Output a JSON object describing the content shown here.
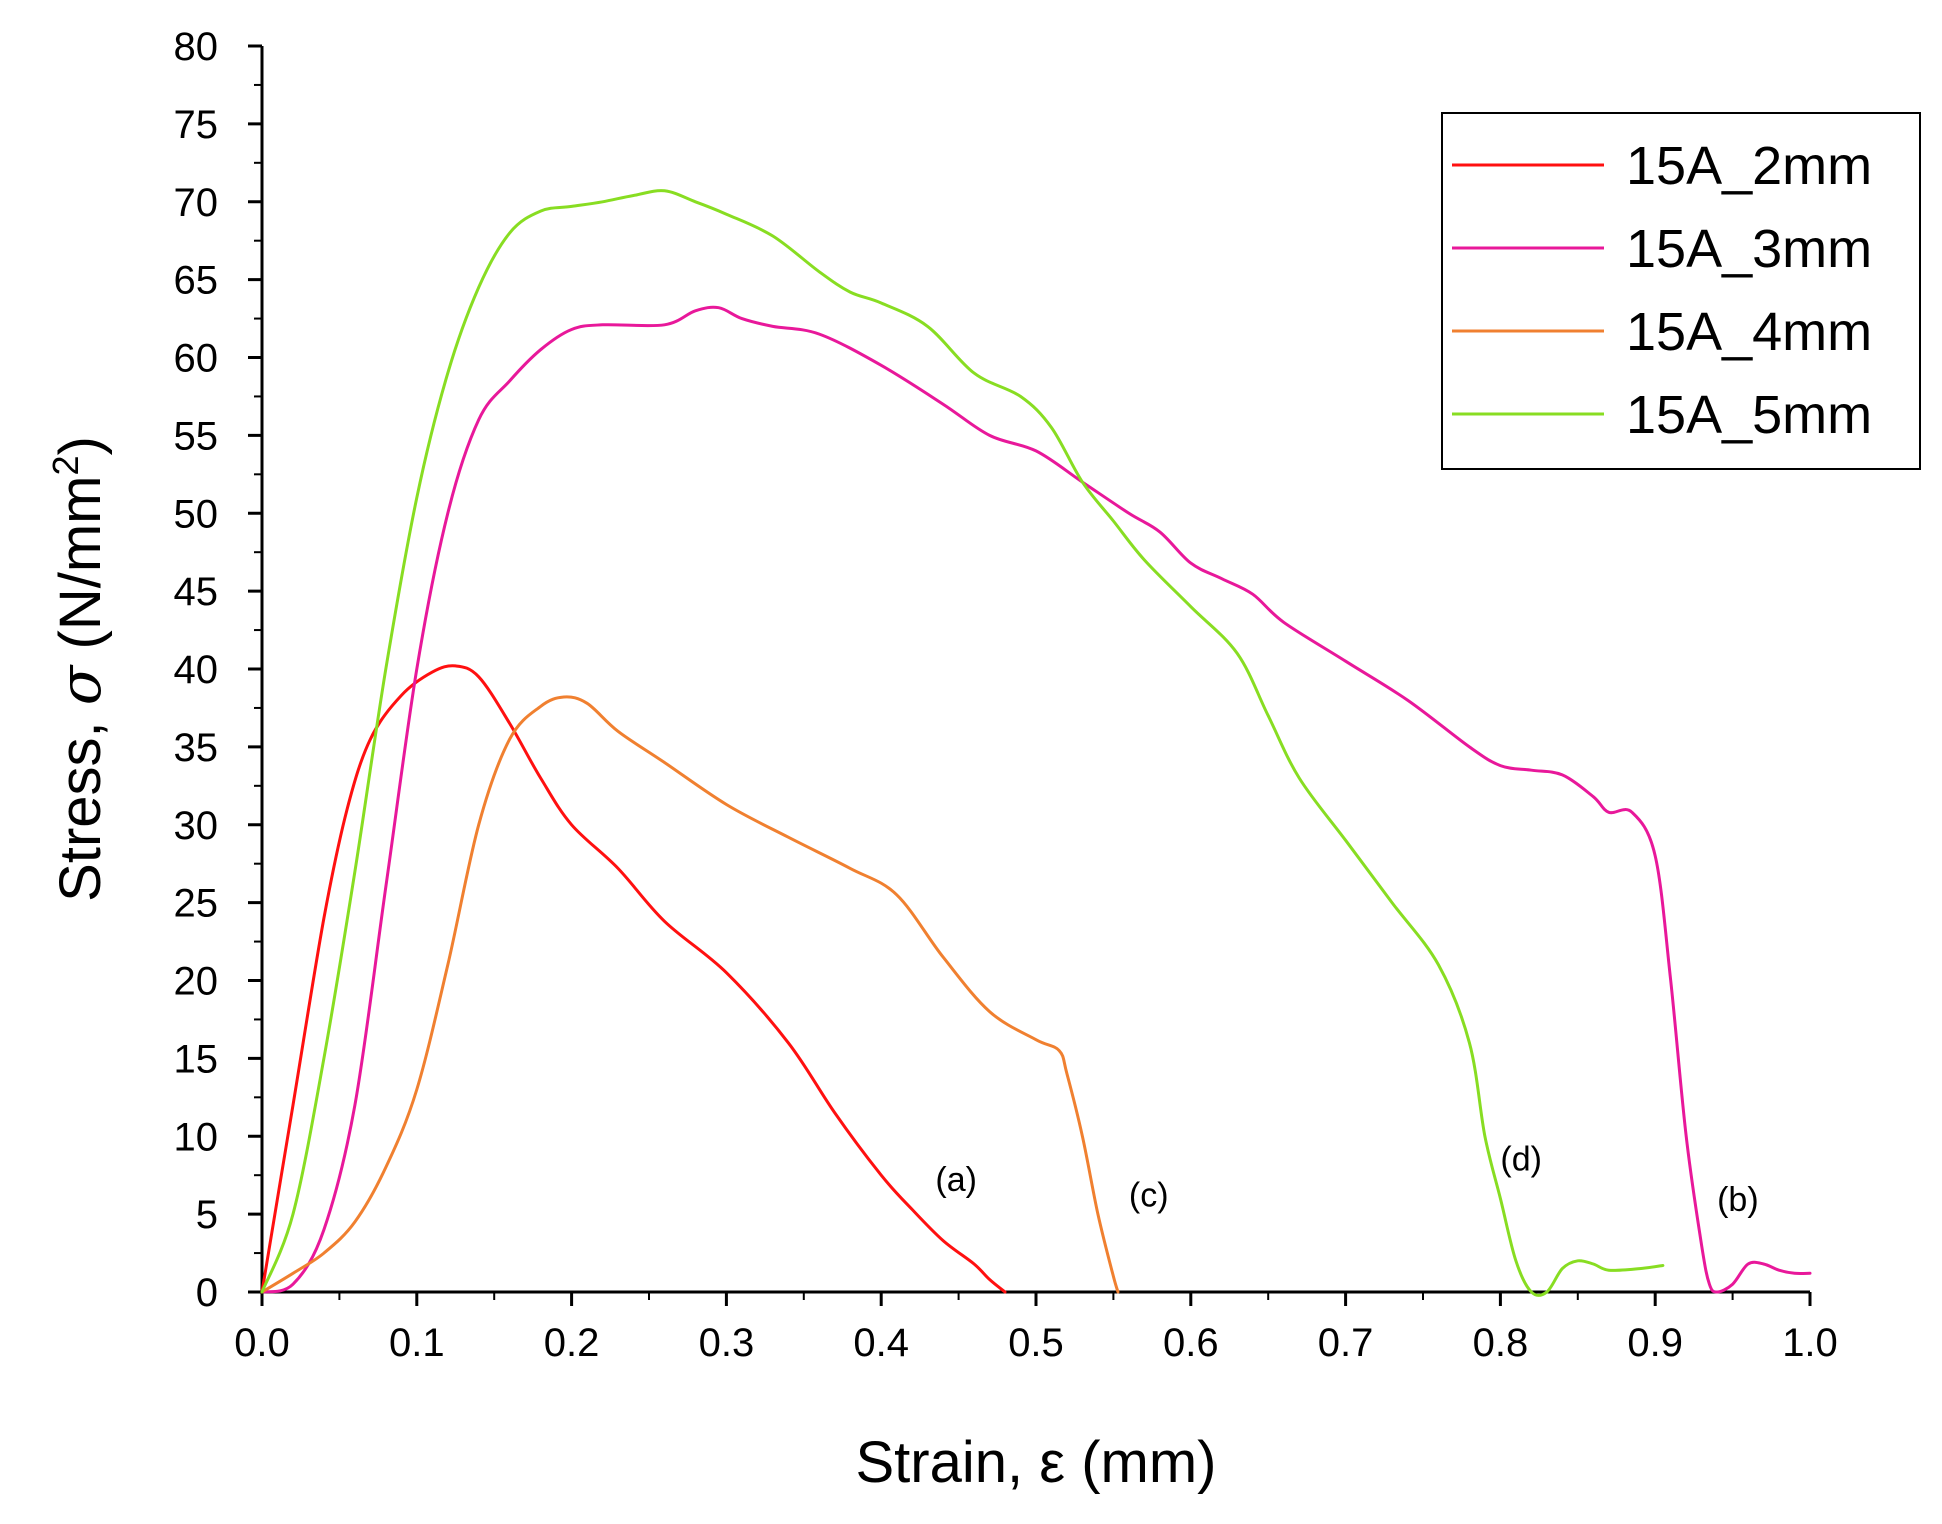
{
  "chart_data": {
    "type": "line",
    "title": "",
    "xlabel": "Strain, ε (mm)",
    "ylabel_prefix": "Stress, ",
    "ylabel_symbol": "σ",
    "ylabel_unit": " (N/mm",
    "ylabel_sup": "2",
    "ylabel_close": ")",
    "xlim": [
      0.0,
      1.0
    ],
    "ylim": [
      0,
      80
    ],
    "xticks": [
      "0.0",
      "0.1",
      "0.2",
      "0.3",
      "0.4",
      "0.5",
      "0.6",
      "0.7",
      "0.8",
      "0.9",
      "1.0"
    ],
    "yticks": [
      "0",
      "5",
      "10",
      "15",
      "20",
      "25",
      "30",
      "35",
      "40",
      "45",
      "50",
      "55",
      "60",
      "65",
      "70",
      "75",
      "80"
    ],
    "legend_position": "top-right",
    "series": [
      {
        "name": "15A_2mm",
        "color": "#ff1010",
        "points": [
          [
            0,
            0
          ],
          [
            0.02,
            12
          ],
          [
            0.04,
            24
          ],
          [
            0.055,
            31
          ],
          [
            0.07,
            35.5
          ],
          [
            0.09,
            38.3
          ],
          [
            0.11,
            39.8
          ],
          [
            0.125,
            40.2
          ],
          [
            0.14,
            39.5
          ],
          [
            0.16,
            36.5
          ],
          [
            0.18,
            33
          ],
          [
            0.2,
            30
          ],
          [
            0.23,
            27.2
          ],
          [
            0.26,
            23.8
          ],
          [
            0.3,
            20.5
          ],
          [
            0.34,
            16
          ],
          [
            0.37,
            11.5
          ],
          [
            0.4,
            7.5
          ],
          [
            0.42,
            5.3
          ],
          [
            0.44,
            3.3
          ],
          [
            0.46,
            1.8
          ],
          [
            0.47,
            0.8
          ],
          [
            0.48,
            0
          ]
        ]
      },
      {
        "name": "15A_3mm",
        "color": "#e8189a",
        "points": [
          [
            0,
            0
          ],
          [
            0.02,
            0.5
          ],
          [
            0.04,
            4
          ],
          [
            0.06,
            12
          ],
          [
            0.08,
            26
          ],
          [
            0.1,
            40
          ],
          [
            0.12,
            50
          ],
          [
            0.14,
            56
          ],
          [
            0.16,
            58.5
          ],
          [
            0.18,
            60.5
          ],
          [
            0.2,
            61.8
          ],
          [
            0.22,
            62.1
          ],
          [
            0.26,
            62.1
          ],
          [
            0.28,
            63
          ],
          [
            0.295,
            63.2
          ],
          [
            0.31,
            62.5
          ],
          [
            0.33,
            62
          ],
          [
            0.36,
            61.5
          ],
          [
            0.4,
            59.5
          ],
          [
            0.44,
            57
          ],
          [
            0.47,
            55
          ],
          [
            0.5,
            54
          ],
          [
            0.53,
            52
          ],
          [
            0.56,
            50
          ],
          [
            0.58,
            48.8
          ],
          [
            0.6,
            46.8
          ],
          [
            0.62,
            45.8
          ],
          [
            0.64,
            44.8
          ],
          [
            0.66,
            43
          ],
          [
            0.7,
            40.5
          ],
          [
            0.74,
            38
          ],
          [
            0.78,
            35
          ],
          [
            0.8,
            33.8
          ],
          [
            0.82,
            33.5
          ],
          [
            0.84,
            33.2
          ],
          [
            0.86,
            31.8
          ],
          [
            0.87,
            30.8
          ],
          [
            0.885,
            30.8
          ],
          [
            0.9,
            28
          ],
          [
            0.91,
            20
          ],
          [
            0.92,
            10
          ],
          [
            0.93,
            3
          ],
          [
            0.935,
            0.5
          ],
          [
            0.94,
            0
          ],
          [
            0.95,
            0.5
          ],
          [
            0.96,
            1.8
          ],
          [
            0.97,
            1.8
          ],
          [
            0.98,
            1.4
          ],
          [
            0.99,
            1.2
          ],
          [
            1.0,
            1.2
          ]
        ]
      },
      {
        "name": "15A_4mm",
        "color": "#f08030",
        "points": [
          [
            0,
            0
          ],
          [
            0.02,
            1.2
          ],
          [
            0.04,
            2.5
          ],
          [
            0.06,
            4.5
          ],
          [
            0.08,
            8
          ],
          [
            0.1,
            13
          ],
          [
            0.12,
            21
          ],
          [
            0.14,
            30
          ],
          [
            0.16,
            35.5
          ],
          [
            0.18,
            37.6
          ],
          [
            0.195,
            38.2
          ],
          [
            0.21,
            37.8
          ],
          [
            0.23,
            36
          ],
          [
            0.26,
            34
          ],
          [
            0.3,
            31.3
          ],
          [
            0.34,
            29.2
          ],
          [
            0.38,
            27.2
          ],
          [
            0.41,
            25.5
          ],
          [
            0.44,
            21.5
          ],
          [
            0.47,
            18
          ],
          [
            0.5,
            16.2
          ],
          [
            0.515,
            15.5
          ],
          [
            0.52,
            14
          ],
          [
            0.53,
            10
          ],
          [
            0.54,
            5
          ],
          [
            0.55,
            1
          ],
          [
            0.553,
            0
          ]
        ]
      },
      {
        "name": "15A_5mm",
        "color": "#88dd22",
        "points": [
          [
            0,
            0
          ],
          [
            0.02,
            5
          ],
          [
            0.04,
            15
          ],
          [
            0.06,
            27
          ],
          [
            0.08,
            40
          ],
          [
            0.1,
            51
          ],
          [
            0.12,
            59
          ],
          [
            0.14,
            64.5
          ],
          [
            0.16,
            68
          ],
          [
            0.18,
            69.4
          ],
          [
            0.2,
            69.7
          ],
          [
            0.22,
            70
          ],
          [
            0.24,
            70.4
          ],
          [
            0.26,
            70.7
          ],
          [
            0.28,
            70
          ],
          [
            0.3,
            69.2
          ],
          [
            0.33,
            67.8
          ],
          [
            0.36,
            65.5
          ],
          [
            0.38,
            64.2
          ],
          [
            0.4,
            63.5
          ],
          [
            0.43,
            62
          ],
          [
            0.46,
            59
          ],
          [
            0.49,
            57.5
          ],
          [
            0.51,
            55.5
          ],
          [
            0.53,
            52
          ],
          [
            0.55,
            49.5
          ],
          [
            0.57,
            47
          ],
          [
            0.6,
            44
          ],
          [
            0.63,
            41
          ],
          [
            0.65,
            37
          ],
          [
            0.67,
            33
          ],
          [
            0.7,
            29
          ],
          [
            0.73,
            25
          ],
          [
            0.76,
            21
          ],
          [
            0.78,
            16
          ],
          [
            0.79,
            10
          ],
          [
            0.8,
            6
          ],
          [
            0.81,
            2
          ],
          [
            0.82,
            0
          ],
          [
            0.83,
            0
          ],
          [
            0.84,
            1.5
          ],
          [
            0.85,
            2
          ],
          [
            0.86,
            1.8
          ],
          [
            0.87,
            1.4
          ],
          [
            0.89,
            1.5
          ],
          [
            0.905,
            1.7
          ]
        ]
      }
    ],
    "annotations": [
      {
        "text": "(a)",
        "x": 0.435,
        "y": 6.5
      },
      {
        "text": "(c)",
        "x": 0.56,
        "y": 5.5
      },
      {
        "text": "(d)",
        "x": 0.8,
        "y": 7.8
      },
      {
        "text": "(b)",
        "x": 0.94,
        "y": 5.2
      }
    ]
  }
}
